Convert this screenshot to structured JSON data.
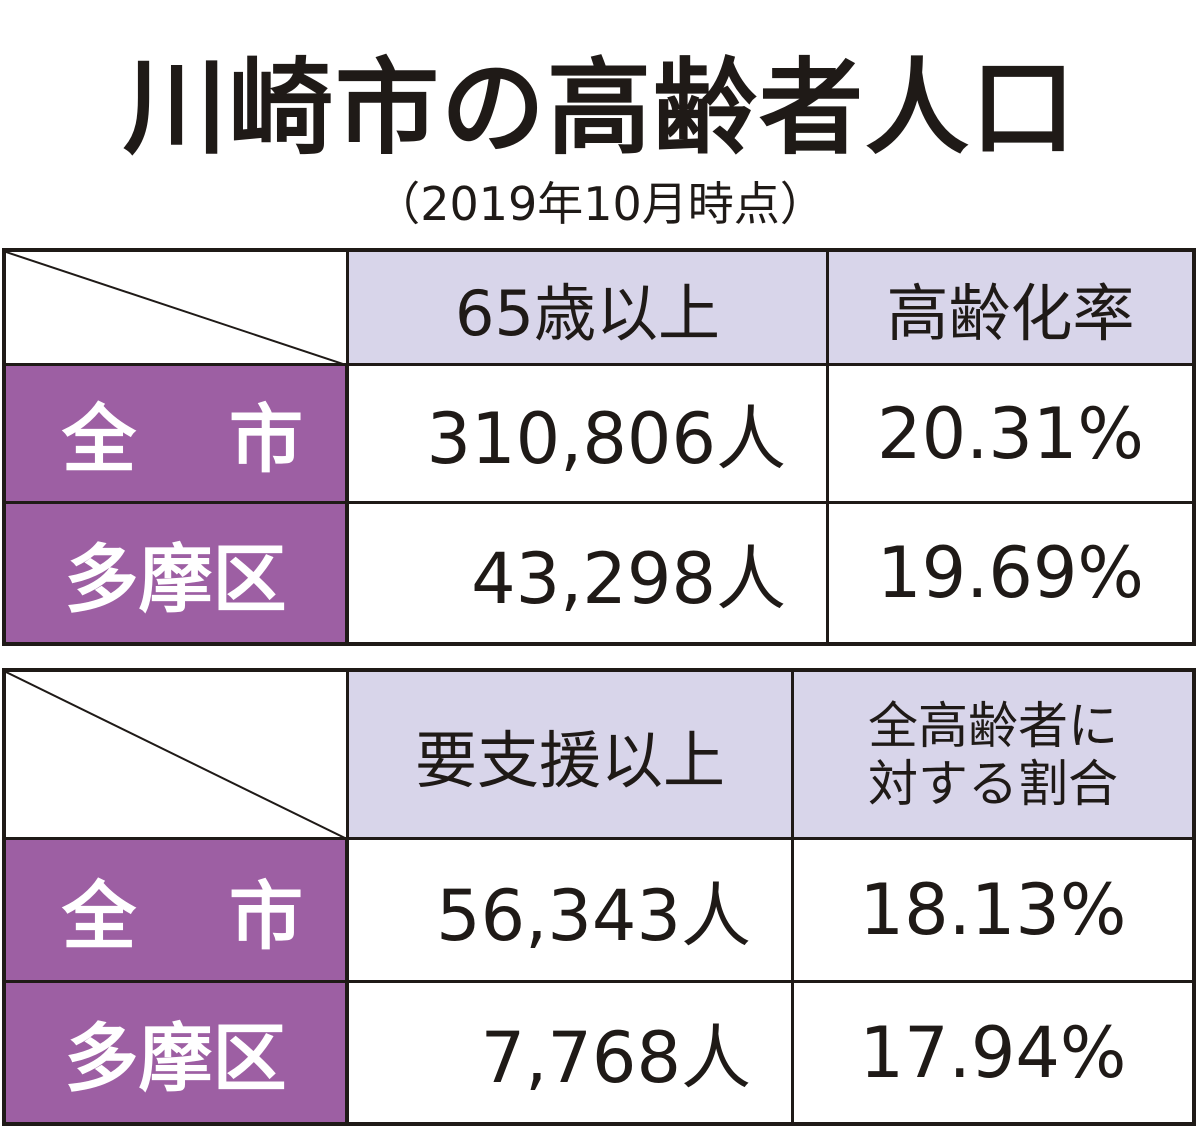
{
  "title": "川崎市の高齢者人口",
  "subtitle": "（2019年10月時点）",
  "table1": {
    "headers": [
      "65歳以上",
      "高齢化率"
    ],
    "rows": [
      {
        "label_a": "全",
        "label_b": "市",
        "count": "310,806人",
        "rate": "20.31%"
      },
      {
        "label": "多摩区",
        "count": "43,298人",
        "rate": "19.69%"
      }
    ]
  },
  "table2": {
    "headers": [
      "要支援以上"
    ],
    "header2_lines": [
      "全高齢者に",
      "対する割合"
    ],
    "rows": [
      {
        "label_a": "全",
        "label_b": "市",
        "count": "56,343人",
        "rate": "18.13%"
      },
      {
        "label": "多摩区",
        "count": "7,768人",
        "rate": "17.94%"
      }
    ]
  },
  "colors": {
    "header_bg": "#d8d5ea",
    "label_bg": "#9d5fa3",
    "border": "#1f1a17"
  }
}
